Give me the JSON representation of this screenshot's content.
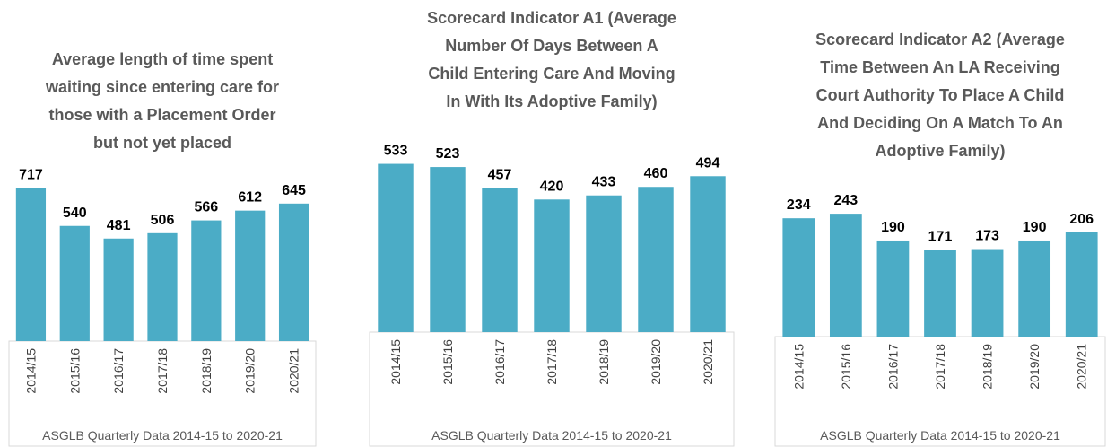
{
  "chart_data": [
    {
      "type": "bar",
      "title": [
        "Average length of time spent",
        "waiting since entering care for",
        "those with a Placement Order",
        "but not yet placed"
      ],
      "categories": [
        "2014/15",
        "2015/16",
        "2016/17",
        "2017/18",
        "2018/19",
        "2019/20",
        "2020/21"
      ],
      "values": [
        717,
        540,
        481,
        506,
        566,
        612,
        645
      ],
      "color": "#4bacc6",
      "ylim": [
        0,
        800
      ],
      "source": "ASGLB Quarterly Data 2014-15 to 2020-21"
    },
    {
      "type": "bar",
      "title": [
        "Scorecard Indicator A1 (Average",
        "Number Of Days Between A",
        "Child Entering Care And Moving",
        "In With Its Adoptive Family)"
      ],
      "categories": [
        "2014/15",
        "2015/16",
        "2016/17",
        "2017/18",
        "2018/19",
        "2019/20",
        "2020/21"
      ],
      "values": [
        533,
        523,
        457,
        420,
        433,
        460,
        494
      ],
      "color": "#4bacc6",
      "ylim": [
        0,
        600
      ],
      "source": "ASGLB Quarterly Data 2014-15 to 2020-21"
    },
    {
      "type": "bar",
      "title": [
        "Scorecard Indicator A2 (Average",
        "Time Between An LA Receiving",
        "Court Authority To Place A Child",
        "And Deciding On A Match To An",
        "Adoptive Family)"
      ],
      "categories": [
        "2014/15",
        "2015/16",
        "2016/17",
        "2017/18",
        "2018/19",
        "2019/20",
        "2020/21"
      ],
      "values": [
        234,
        243,
        190,
        171,
        173,
        190,
        206
      ],
      "color": "#4bacc6",
      "ylim": [
        0,
        300
      ],
      "source": "ASGLB Quarterly Data 2014-15 to 2020-21"
    }
  ]
}
